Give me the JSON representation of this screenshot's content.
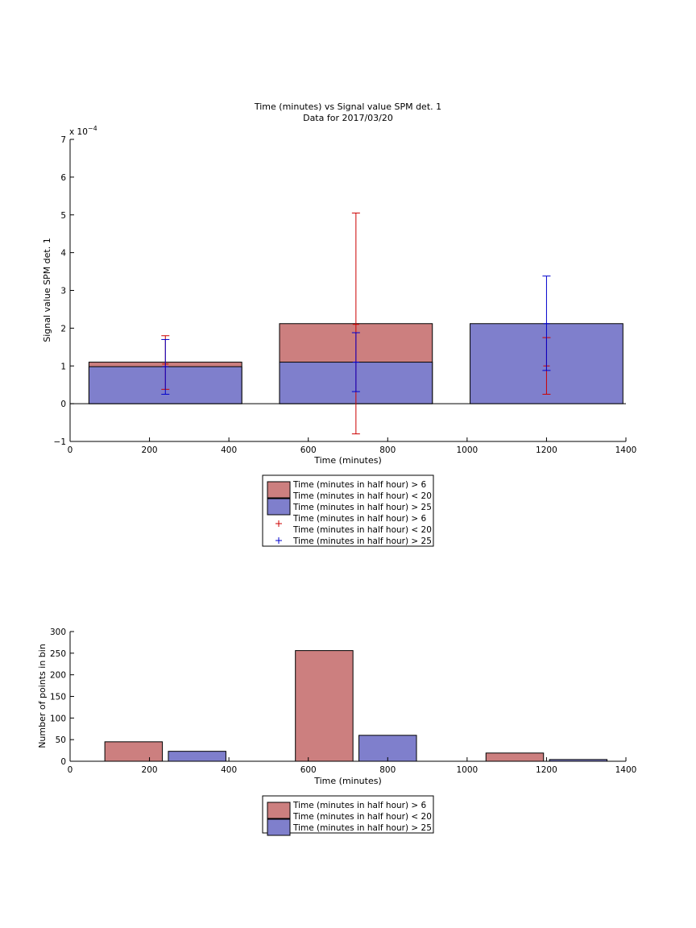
{
  "chart_data": [
    {
      "type": "bar",
      "stacked": true,
      "title": "Time (minutes) vs Signal value SPM det. 1",
      "subtitle": "Data for 2017/03/20",
      "xlabel": "Time (minutes)",
      "ylabel": "Signal value SPM det. 1",
      "y_exponent_label": "x 10",
      "y_exponent_power": "−4",
      "xlim": [
        0,
        1400
      ],
      "ylim": [
        -1,
        7
      ],
      "y_scale_note": "values in units of 1e-4",
      "x_ticks": [
        "0",
        "200",
        "400",
        "600",
        "800",
        "1000",
        "1200",
        "1400"
      ],
      "y_ticks": [
        "−1",
        "0",
        "1",
        "2",
        "3",
        "4",
        "5",
        "6",
        "7"
      ],
      "bins": [
        {
          "center": 240,
          "width": 385
        },
        {
          "center": 720,
          "width": 385
        },
        {
          "center": 1200,
          "width": 385
        }
      ],
      "series": [
        {
          "name": "Time (minutes in half hour) > 6\nTime (minutes in half hour) < 20",
          "color": "#cc7f7f",
          "values": [
            1.1,
            2.12,
            0
          ]
        },
        {
          "name": "Time (minutes in half hour) > 25",
          "color": "#7f7fcc",
          "values": [
            0.98,
            1.1,
            2.12
          ]
        }
      ],
      "error_bars": [
        {
          "series": "Time (minutes in half hour) > 6\nTime (minutes in half hour) < 20",
          "color": "#cc0000",
          "points": [
            {
              "x": 240,
              "mean": 1.05,
              "low": 0.38,
              "high": 1.8
            },
            {
              "x": 720,
              "mean": 2.1,
              "low": -0.8,
              "high": 5.05
            },
            {
              "x": 1200,
              "mean": 1.0,
              "low": 0.25,
              "high": 1.75
            }
          ]
        },
        {
          "series": "Time (minutes in half hour) > 25",
          "color": "#0000cc",
          "points": [
            {
              "x": 240,
              "mean": 0.98,
              "low": 0.25,
              "high": 1.7
            },
            {
              "x": 720,
              "mean": 1.1,
              "low": 0.32,
              "high": 1.88
            },
            {
              "x": 1200,
              "mean": 2.12,
              "low": 0.88,
              "high": 3.38
            }
          ]
        }
      ],
      "legend": {
        "placement": "below",
        "entries": [
          {
            "label_lines": [
              "Time (minutes in half hour) > 6",
              "Time (minutes in half hour) < 20"
            ],
            "kind": "patch",
            "color": "#cc7f7f"
          },
          {
            "label_lines": [
              "Time (minutes in half hour) > 25"
            ],
            "kind": "patch",
            "color": "#7f7fcc"
          },
          {
            "label_lines": [
              "Time (minutes in half hour) > 6",
              "Time (minutes in half hour) < 20"
            ],
            "kind": "marker",
            "color": "#cc0000"
          },
          {
            "label_lines": [
              "Time (minutes in half hour) > 25"
            ],
            "kind": "marker",
            "color": "#0000cc"
          }
        ]
      }
    },
    {
      "type": "bar",
      "grouped": true,
      "xlabel": "Time (minutes)",
      "ylabel": "Number of points in bin",
      "xlim": [
        0,
        1400
      ],
      "ylim": [
        0,
        300
      ],
      "x_ticks": [
        "0",
        "200",
        "400",
        "600",
        "800",
        "1000",
        "1200",
        "1400"
      ],
      "y_ticks": [
        "0",
        "50",
        "100",
        "150",
        "200",
        "250",
        "300"
      ],
      "bins": [
        240,
        720,
        1200
      ],
      "bar_width": 145,
      "series": [
        {
          "name": "Time (minutes in half hour) > 6\nTime (minutes in half hour) < 20",
          "color": "#cc7f7f",
          "x": [
            160,
            640,
            1120
          ],
          "values": [
            45,
            256,
            19
          ]
        },
        {
          "name": "Time (minutes in half hour) > 25",
          "color": "#7f7fcc",
          "x": [
            320,
            800,
            1280
          ],
          "values": [
            23,
            60,
            4
          ]
        }
      ],
      "legend": {
        "placement": "below",
        "entries": [
          {
            "label_lines": [
              "Time (minutes in half hour) > 6",
              "Time (minutes in half hour) < 20"
            ],
            "kind": "patch",
            "color": "#cc7f7f"
          },
          {
            "label_lines": [
              "Time (minutes in half hour) > 25"
            ],
            "kind": "patch",
            "color": "#7f7fcc"
          }
        ]
      }
    }
  ]
}
